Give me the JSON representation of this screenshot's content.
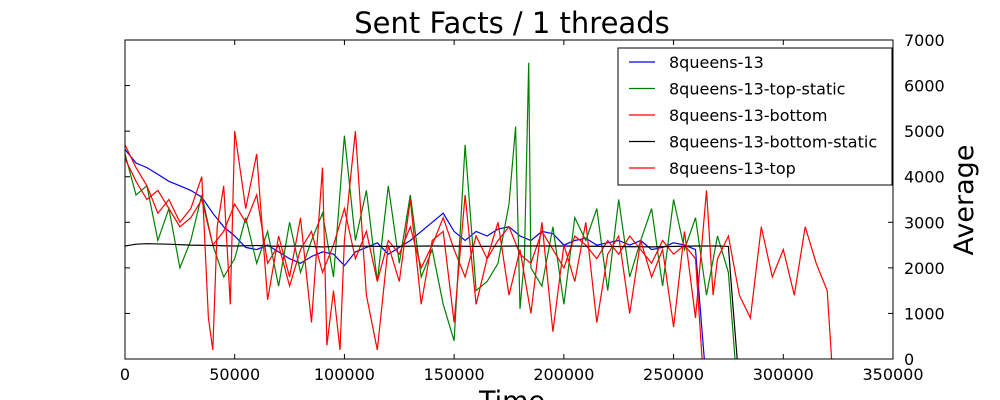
{
  "chart_data": {
    "type": "line",
    "title": "Sent Facts / 1 threads",
    "xlabel": "Time",
    "ylabel": "Average",
    "xlim": [
      0,
      350000
    ],
    "ylim": [
      0,
      7000
    ],
    "x_ticks": [
      "0",
      "50000",
      "100000",
      "150000",
      "200000",
      "250000",
      "300000",
      "350000"
    ],
    "y_ticks": [
      "0",
      "1000",
      "2000",
      "3000",
      "4000",
      "5000",
      "6000",
      "7000"
    ],
    "y_axis_side": "right",
    "grid": false,
    "legend_position": "top-right",
    "series": [
      {
        "name": "8queens-13",
        "color": "#0000ff",
        "x": [
          0,
          5000,
          10000,
          15000,
          20000,
          25000,
          30000,
          35000,
          40000,
          45000,
          50000,
          55000,
          60000,
          65000,
          70000,
          75000,
          80000,
          85000,
          90000,
          95000,
          100000,
          105000,
          110000,
          115000,
          120000,
          125000,
          130000,
          135000,
          140000,
          145000,
          150000,
          155000,
          160000,
          165000,
          170000,
          175000,
          180000,
          185000,
          190000,
          195000,
          200000,
          205000,
          210000,
          215000,
          220000,
          225000,
          230000,
          235000,
          240000,
          245000,
          250000,
          255000,
          260000,
          262000,
          264000
        ],
        "y": [
          4600,
          4300,
          4200,
          4050,
          3900,
          3800,
          3700,
          3550,
          3200,
          2900,
          2700,
          2450,
          2400,
          2500,
          2350,
          2200,
          2100,
          2250,
          2350,
          2300,
          2050,
          2350,
          2450,
          2550,
          2300,
          2450,
          2600,
          2800,
          3000,
          3200,
          2800,
          2600,
          2800,
          2700,
          2850,
          2900,
          2700,
          2600,
          2800,
          2750,
          2500,
          2600,
          2650,
          2500,
          2550,
          2600,
          2500,
          2600,
          2400,
          2450,
          2550,
          2500,
          2400,
          1200,
          0
        ]
      },
      {
        "name": "8queens-13-top-static",
        "color": "#008000",
        "x": [
          0,
          5000,
          10000,
          15000,
          20000,
          25000,
          30000,
          35000,
          40000,
          45000,
          50000,
          55000,
          60000,
          65000,
          70000,
          75000,
          80000,
          85000,
          90000,
          95000,
          100000,
          105000,
          110000,
          115000,
          120000,
          125000,
          130000,
          135000,
          140000,
          145000,
          150000,
          155000,
          160000,
          165000,
          170000,
          175000,
          178000,
          180000,
          182000,
          184000,
          185000,
          190000,
          195000,
          200000,
          205000,
          210000,
          215000,
          220000,
          225000,
          230000,
          235000,
          240000,
          245000,
          250000,
          255000,
          260000,
          265000,
          270000,
          275000,
          278000
        ],
        "y": [
          4500,
          3600,
          3800,
          2600,
          3300,
          2000,
          2600,
          3600,
          2500,
          1800,
          2200,
          3100,
          2100,
          2800,
          1600,
          3000,
          1900,
          2600,
          3200,
          1800,
          4900,
          2600,
          3700,
          1700,
          3800,
          2100,
          3600,
          1800,
          2400,
          1200,
          400,
          4700,
          1500,
          1700,
          2100,
          3400,
          5100,
          1100,
          2200,
          6500,
          2000,
          1600,
          2900,
          1200,
          3100,
          2600,
          3300,
          1500,
          3500,
          1800,
          2600,
          3300,
          1600,
          3500,
          2400,
          3100,
          1400,
          2700,
          1900,
          0
        ]
      },
      {
        "name": "8queens-13-bottom",
        "color": "#ff0000",
        "x": [
          0,
          5000,
          10000,
          15000,
          20000,
          25000,
          30000,
          35000,
          40000,
          45000,
          50000,
          55000,
          60000,
          65000,
          70000,
          75000,
          80000,
          85000,
          90000,
          95000,
          100000,
          105000,
          110000,
          115000,
          120000,
          125000,
          130000,
          135000,
          140000,
          145000,
          150000,
          155000,
          160000,
          165000,
          170000,
          175000,
          180000,
          185000,
          190000,
          195000,
          200000,
          205000,
          210000,
          215000,
          220000,
          225000,
          230000,
          235000,
          240000,
          245000,
          250000,
          255000,
          260000,
          263000
        ],
        "y": [
          4400,
          3900,
          3500,
          3700,
          3300,
          2900,
          3100,
          3500,
          2500,
          2800,
          3400,
          3000,
          3600,
          2100,
          2500,
          1600,
          2400,
          2800,
          1900,
          2500,
          3300,
          2200,
          2800,
          1700,
          2600,
          2300,
          2900,
          2000,
          2500,
          3100,
          2400,
          1800,
          2700,
          2200,
          2600,
          2900,
          2300,
          2100,
          2800,
          2400,
          2000,
          2700,
          2500,
          2200,
          2600,
          2300,
          2700,
          2400,
          2100,
          2600,
          2300,
          2500,
          2200,
          0
        ]
      },
      {
        "name": "8queens-13-bottom-static",
        "color": "#000000",
        "x": [
          0,
          5000,
          10000,
          20000,
          30000,
          40000,
          50000,
          60000,
          70000,
          80000,
          90000,
          100000,
          120000,
          140000,
          160000,
          180000,
          200000,
          220000,
          240000,
          260000,
          270000,
          275000,
          277000,
          279000
        ],
        "y": [
          2480,
          2520,
          2530,
          2520,
          2500,
          2490,
          2480,
          2490,
          2470,
          2480,
          2460,
          2480,
          2470,
          2480,
          2470,
          2480,
          2480,
          2470,
          2460,
          2480,
          2480,
          2470,
          1200,
          0
        ]
      },
      {
        "name": "8queens-13-top",
        "color": "#ff0000",
        "x": [
          0,
          5000,
          10000,
          15000,
          20000,
          25000,
          30000,
          35000,
          38000,
          40000,
          42000,
          45000,
          48000,
          50000,
          55000,
          60000,
          65000,
          70000,
          75000,
          80000,
          85000,
          90000,
          92000,
          95000,
          98000,
          100000,
          102000,
          105000,
          110000,
          115000,
          120000,
          125000,
          130000,
          135000,
          140000,
          145000,
          150000,
          155000,
          160000,
          165000,
          170000,
          175000,
          180000,
          185000,
          190000,
          195000,
          200000,
          205000,
          210000,
          215000,
          220000,
          225000,
          230000,
          235000,
          240000,
          245000,
          250000,
          255000,
          260000,
          265000,
          268000,
          270000,
          275000,
          280000,
          285000,
          290000,
          295000,
          300000,
          305000,
          310000,
          315000,
          320000,
          322000
        ],
        "y": [
          4700,
          4200,
          3800,
          3200,
          3500,
          3000,
          3300,
          4000,
          900,
          200,
          2900,
          3800,
          1200,
          5000,
          3300,
          4500,
          1300,
          2700,
          1800,
          3100,
          800,
          4200,
          300,
          1500,
          200,
          2600,
          3600,
          5000,
          1400,
          200,
          2500,
          1700,
          3500,
          1200,
          2600,
          2800,
          800,
          3600,
          1200,
          2200,
          3000,
          1400,
          2400,
          1000,
          3000,
          600,
          2500,
          1700,
          3000,
          800,
          2300,
          2700,
          1000,
          2600,
          1800,
          2400,
          700,
          2800,
          900,
          3700,
          1400,
          2200,
          2700,
          1400,
          900,
          2900,
          1800,
          2400,
          1400,
          2900,
          2100,
          1500,
          0
        ]
      }
    ]
  }
}
